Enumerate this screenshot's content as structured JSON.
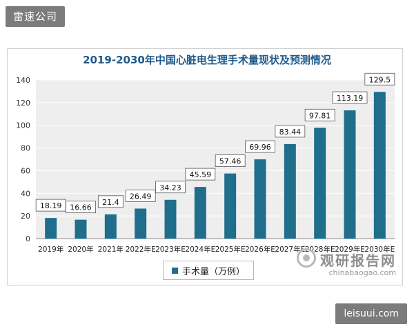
{
  "watermark_top": "雷速公司",
  "watermark_bottom": "leisuui.com",
  "brand": {
    "name": "观研报告网",
    "domain": "chinabaogao.com"
  },
  "chart_data": {
    "type": "bar",
    "title": "2019-2030年中国心脏电生理手术量现状及预测情况",
    "categories": [
      "2019年",
      "2020年",
      "2021年",
      "2022年E",
      "2023年E",
      "2024年E",
      "2025年E",
      "2026年E",
      "2027年E",
      "2028年E",
      "2029年E",
      "2030年E"
    ],
    "series": [
      {
        "name": "手术量（万例）",
        "values": [
          18.19,
          16.66,
          21.4,
          26.49,
          34.23,
          45.59,
          57.46,
          69.96,
          83.44,
          97.81,
          113.19,
          129.5
        ]
      }
    ],
    "data_labels": [
      "18.19",
      "16.66",
      "21.4",
      "26.49",
      "34.23",
      "45.59",
      "57.46",
      "69.96",
      "83.44",
      "97.81",
      "113.19",
      "129.5"
    ],
    "ylim": [
      0,
      140
    ],
    "yticks": [
      0,
      20,
      40,
      60,
      80,
      100,
      120,
      140
    ],
    "grid": true,
    "legend": "bottom",
    "colors": {
      "bar": "#1e6e8c",
      "plot_bg": "#eeeeee",
      "grid": "#ffffff"
    }
  }
}
